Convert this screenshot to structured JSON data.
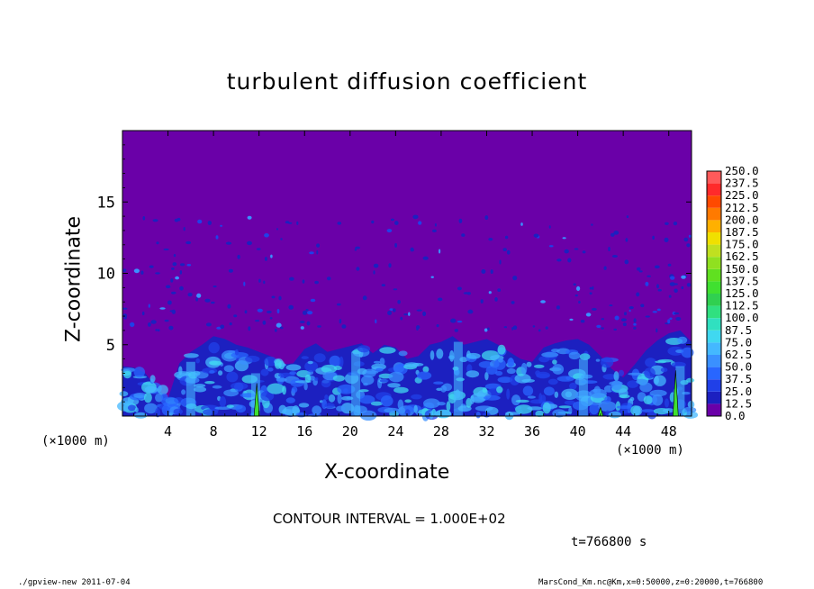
{
  "chart_data": {
    "type": "heatmap",
    "title": "turbulent diffusion coefficient",
    "xlabel": "X-coordinate",
    "ylabel": "Z-coordinate",
    "x_unit_label": "(×1000 m)",
    "xlim": [
      0,
      50
    ],
    "ylim": [
      0,
      20
    ],
    "x_ticks": [
      4,
      8,
      12,
      16,
      20,
      24,
      28,
      32,
      36,
      40,
      44,
      48
    ],
    "y_ticks": [
      5,
      10,
      15
    ],
    "colorbar_levels": [
      "0.0",
      "12.5",
      "25.0",
      "37.5",
      "50.0",
      "62.5",
      "75.0",
      "87.5",
      "100.0",
      "112.5",
      "125.0",
      "137.5",
      "150.0",
      "162.5",
      "175.0",
      "187.5",
      "200.0",
      "212.5",
      "225.0",
      "237.5",
      "250.0"
    ],
    "colorbar_colors": [
      "#6a00a8",
      "#1c20c0",
      "#2040e8",
      "#2866ff",
      "#3a90ff",
      "#44b8ff",
      "#40d8f0",
      "#30e0c0",
      "#30e080",
      "#30d050",
      "#40e030",
      "#60e020",
      "#90e020",
      "#c0e020",
      "#f0e000",
      "#ffb000",
      "#ff7a00",
      "#ff4a00",
      "#ff2a2a",
      "#ff5a5a",
      "#ff8a8a"
    ],
    "turbulent_layer_top_km": [
      3.5,
      3.4,
      3.0,
      2.0,
      1.2,
      3.7,
      4.5,
      5.0,
      5.6,
      5.4,
      5.0,
      4.8,
      4.5,
      4.2,
      3.6,
      3.7,
      4.7,
      5.1,
      4.5,
      4.7,
      4.9,
      5.1,
      4.4,
      5.0,
      4.8,
      4.0,
      4.2,
      5.0,
      5.2,
      5.6,
      5.0,
      5.2,
      5.4,
      5.0,
      4.5,
      4.0,
      3.8,
      4.8,
      5.1,
      5.3,
      5.4,
      5.0,
      4.2,
      3.3,
      2.7,
      3.6,
      4.6,
      5.3,
      5.8,
      6.0,
      5.2
    ],
    "scattered_patch_band_km": [
      6,
      14
    ]
  },
  "contour_label": "CONTOUR INTERVAL = 1.000E+02",
  "time_label": "t=766800 s",
  "footer_left": "./gpview-new   2011-07-04",
  "footer_right": "MarsCond_Km.nc@Km,x=0:50000,z=0:20000,t=766800"
}
